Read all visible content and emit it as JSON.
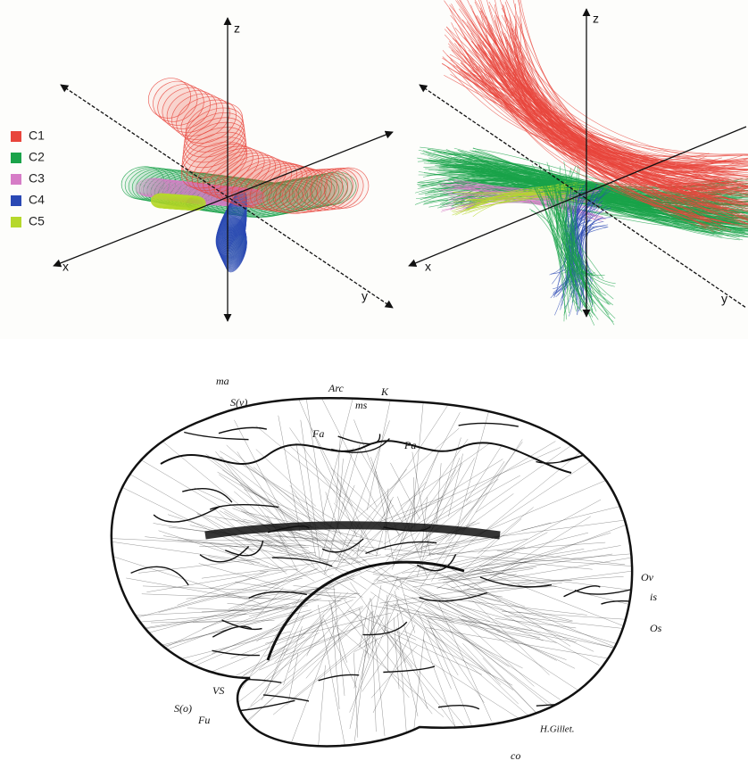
{
  "panels": [
    {
      "legend": [
        {
          "label": "C1",
          "color": "#e8453c"
        },
        {
          "label": "C2",
          "color": "#1aa34a"
        },
        {
          "label": "C3",
          "color": "#d67cc6"
        },
        {
          "label": "C4",
          "color": "#2a48b4"
        },
        {
          "label": "C5",
          "color": "#b6d82c"
        }
      ],
      "axes": {
        "x": "x",
        "y": "y",
        "z": "z"
      }
    },
    {
      "axes": {
        "x": "x",
        "y": "y",
        "z": "z"
      }
    }
  ],
  "brain": {
    "labels": [
      "ma",
      "S(v)",
      "Arc",
      "ms",
      "K",
      "Fa",
      "Pa",
      "Ov",
      "is",
      "Os",
      "VS",
      "Fu",
      "S(o)",
      "co"
    ],
    "signature": "H.Gillet."
  }
}
